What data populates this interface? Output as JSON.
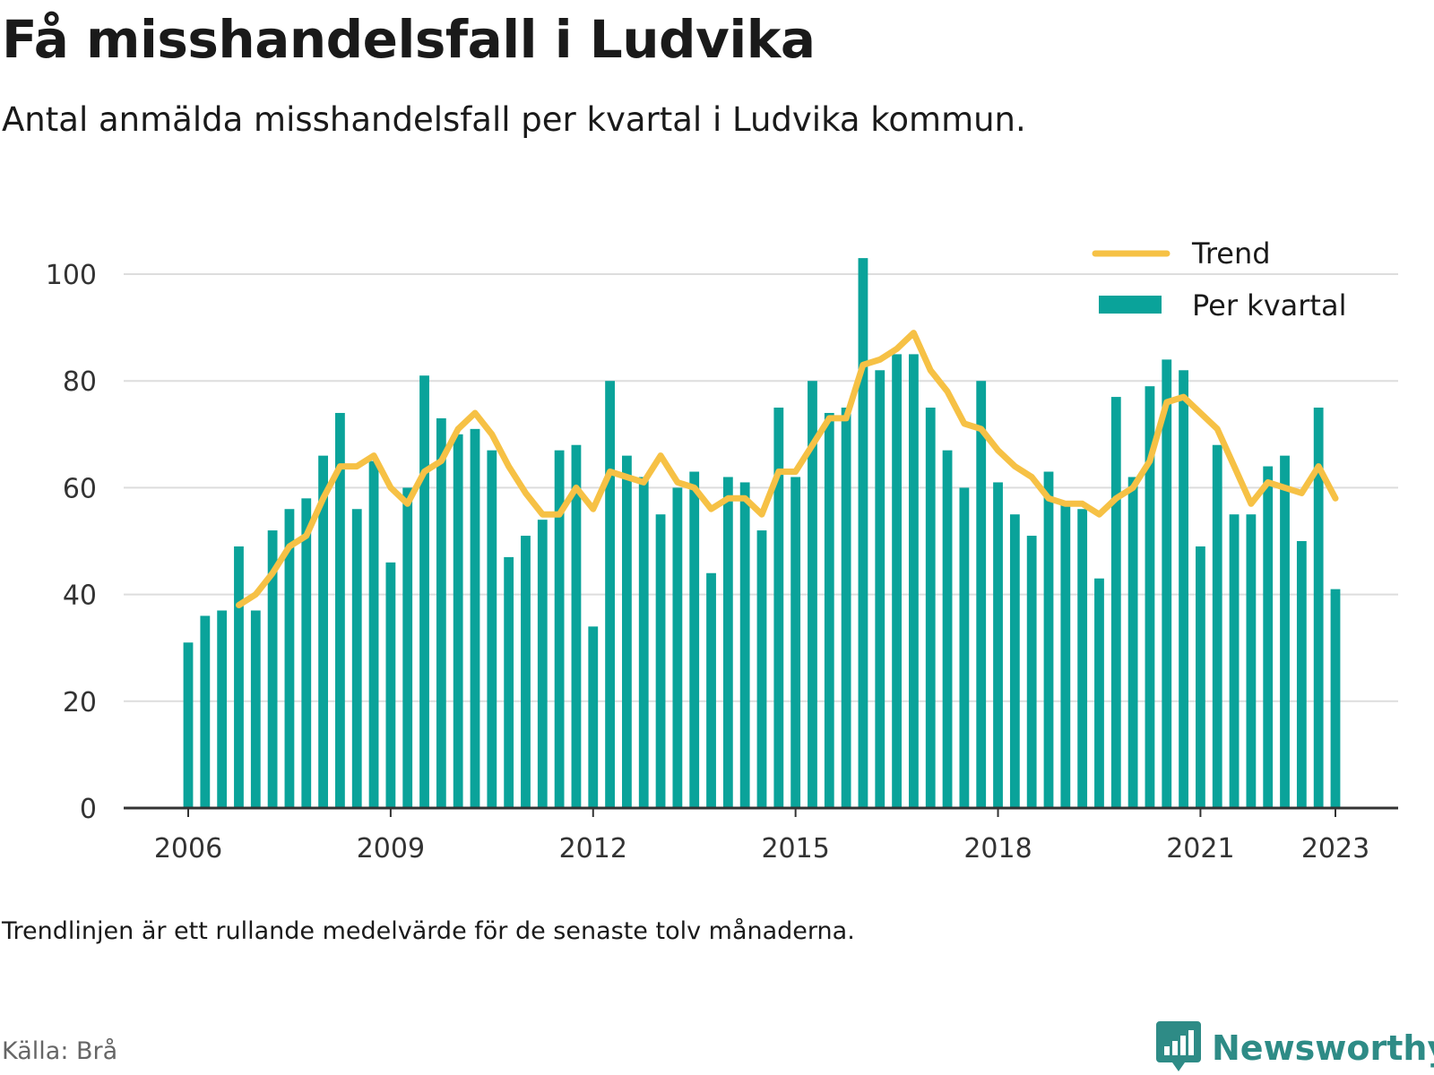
{
  "header": {
    "title": "Få misshandelsfall i Ludvika",
    "subtitle": "Antal anmälda misshandelsfall per kvartal i Ludvika kommun."
  },
  "footer": {
    "note": "Trendlinjen är ett rullande medelvärde för de senaste tolv månaderna.",
    "source": "Källa: Brå",
    "brand": "Newsworthy"
  },
  "colors": {
    "bar": "#0aa39a",
    "trend": "#f6c145",
    "grid": "#dddddd",
    "axis": "#333333",
    "brand": "#2e8b86"
  },
  "icons": {
    "brand_logo": "bar-chart-speech-bubble-icon"
  },
  "chart_data": {
    "type": "bar",
    "xlim": [
      2006,
      2023.25
    ],
    "ylim": [
      0,
      100
    ],
    "yticks": [
      0,
      20,
      40,
      60,
      80,
      100
    ],
    "xticks": [
      "2006",
      "2009",
      "2012",
      "2015",
      "2018",
      "2021",
      "2023"
    ],
    "grid": true,
    "legend": {
      "position": "top-right",
      "entries": [
        "Trend",
        "Per kvartal"
      ]
    },
    "series": [
      {
        "name": "Per kvartal",
        "type": "bar",
        "start": "2006 Q1",
        "values": [
          31,
          36,
          37,
          49,
          37,
          52,
          56,
          58,
          66,
          74,
          56,
          65,
          46,
          60,
          81,
          73,
          70,
          71,
          67,
          47,
          51,
          54,
          67,
          68,
          34,
          80,
          66,
          62,
          55,
          60,
          63,
          44,
          62,
          61,
          52,
          75,
          62,
          80,
          74,
          75,
          103,
          82,
          85,
          85,
          75,
          67,
          60,
          80,
          61,
          55,
          51,
          63,
          57,
          56,
          43,
          77,
          62,
          79,
          84,
          82,
          49,
          68,
          55,
          55,
          64,
          66,
          50,
          75,
          41
        ]
      },
      {
        "name": "Trend",
        "type": "line",
        "start": "2006 Q4",
        "values": [
          38,
          40,
          44,
          49,
          51,
          58,
          64,
          64,
          66,
          60,
          57,
          63,
          65,
          71,
          74,
          70,
          64,
          59,
          55,
          55,
          60,
          56,
          63,
          62,
          61,
          66,
          61,
          60,
          56,
          58,
          58,
          55,
          63,
          63,
          68,
          73,
          73,
          83,
          84,
          86,
          89,
          82,
          78,
          72,
          71,
          67,
          64,
          62,
          58,
          57,
          57,
          55,
          58,
          60,
          65,
          76,
          77,
          74,
          71,
          64,
          57,
          61,
          60,
          59,
          64,
          58
        ]
      }
    ]
  }
}
